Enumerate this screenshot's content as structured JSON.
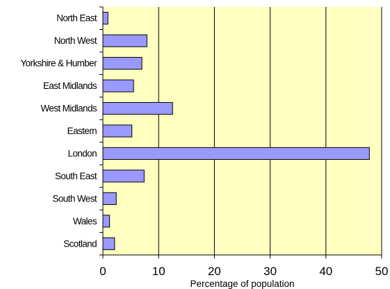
{
  "chart_data": {
    "type": "bar",
    "orientation": "horizontal",
    "title": "",
    "xlabel": "Percentage of population",
    "ylabel": "",
    "categories": [
      "North East",
      "North West",
      "Yorkshire & Humber",
      "East Midlands",
      "West Midlands",
      "Eastern",
      "London",
      "South East",
      "South West",
      "Wales",
      "Scotland"
    ],
    "values": [
      0.9,
      7.9,
      7.0,
      5.5,
      12.5,
      5.2,
      47.8,
      7.4,
      2.4,
      1.2,
      2.1
    ],
    "xlim": [
      0,
      50
    ],
    "xticks": [
      "0",
      "10",
      "20",
      "30",
      "40",
      "50"
    ],
    "xgrid": true,
    "legend": "none",
    "colors": {
      "plot_background": "#ffffc0",
      "bar_fill": "#9999ff",
      "bar_stroke": "#000000",
      "grid": "#000000"
    }
  }
}
